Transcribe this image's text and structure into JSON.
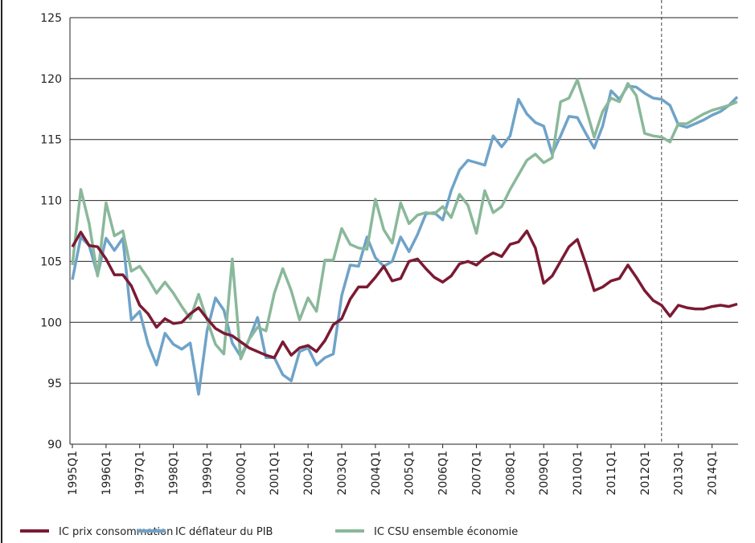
{
  "chart_data": {
    "type": "line",
    "categories": [
      "1995Q1",
      null,
      null,
      null,
      "1996Q1",
      null,
      null,
      null,
      "1997Q1",
      null,
      null,
      null,
      "1998Q1",
      null,
      null,
      null,
      "1999Q1",
      null,
      null,
      null,
      "2000Q1",
      null,
      null,
      null,
      "2001Q1",
      null,
      null,
      null,
      "2002Q1",
      null,
      null,
      null,
      "2003Q1",
      null,
      null,
      null,
      "2004Q1",
      null,
      null,
      null,
      "2005Q1",
      null,
      null,
      null,
      "2006Q1",
      null,
      null,
      null,
      "2007Q1",
      null,
      null,
      null,
      "2008Q1",
      null,
      null,
      null,
      "2009Q1",
      null,
      null,
      null,
      "2010Q1",
      null,
      null,
      null,
      "2011Q1",
      null,
      null,
      null,
      "2012Q1",
      null,
      null,
      null,
      "2013Q1",
      null,
      null,
      null,
      "2014Q1",
      null,
      null,
      null
    ],
    "series": [
      {
        "name": "IC prix consommation",
        "color": "#7b1a33",
        "values": [
          106.2,
          107.4,
          106.3,
          106.2,
          105.2,
          103.9,
          103.9,
          103.0,
          101.4,
          100.7,
          99.6,
          100.3,
          99.9,
          100.0,
          100.7,
          101.2,
          100.3,
          99.5,
          99.1,
          98.9,
          98.4,
          97.9,
          97.6,
          97.3,
          97.1,
          98.4,
          97.3,
          97.9,
          98.1,
          97.6,
          98.5,
          99.8,
          100.3,
          101.9,
          102.9,
          102.9,
          103.7,
          104.6,
          103.4,
          103.6,
          105.0,
          105.2,
          104.4,
          103.7,
          103.3,
          103.8,
          104.8,
          105.0,
          104.7,
          105.3,
          105.7,
          105.4,
          106.4,
          106.6,
          107.5,
          106.1,
          103.2,
          103.8,
          105.0,
          106.2,
          106.8,
          104.8,
          102.6,
          102.9,
          103.4,
          103.6,
          104.7,
          103.7,
          102.6,
          101.8,
          101.4,
          100.5,
          101.4,
          101.2,
          101.1,
          101.1,
          101.3,
          101.4,
          101.3,
          101.5
        ]
      },
      {
        "name": "IC déflateur du PIB",
        "color": "#6fa3c8",
        "values": [
          103.5,
          107.0,
          106.3,
          103.9,
          106.9,
          105.9,
          106.9,
          100.2,
          100.9,
          98.2,
          96.5,
          99.1,
          98.2,
          97.8,
          98.3,
          94.1,
          99.3,
          102.0,
          101.0,
          98.3,
          97.2,
          98.6,
          100.4,
          97.1,
          97.1,
          95.7,
          95.2,
          97.6,
          97.9,
          96.5,
          97.1,
          97.4,
          102.2,
          104.7,
          104.6,
          107.0,
          105.3,
          104.6,
          105.0,
          107.0,
          105.8,
          107.2,
          108.9,
          109.0,
          108.4,
          110.8,
          112.5,
          113.3,
          113.1,
          112.9,
          115.3,
          114.4,
          115.3,
          118.3,
          117.1,
          116.4,
          116.1,
          113.8,
          115.3,
          116.9,
          116.8,
          115.5,
          114.3,
          116.1,
          119.0,
          118.3,
          119.4,
          119.3,
          118.8,
          118.4,
          118.3,
          117.8,
          116.2,
          116.0,
          116.3,
          116.6,
          117.0,
          117.3,
          117.8,
          118.5
        ]
      },
      {
        "name": "IC CSU ensemble économie",
        "color": "#8ab89a",
        "values": [
          104.7,
          110.9,
          108.1,
          103.8,
          109.8,
          107.1,
          107.5,
          104.2,
          104.6,
          103.6,
          102.4,
          103.3,
          102.4,
          101.3,
          100.3,
          102.3,
          100.2,
          98.2,
          97.4,
          105.2,
          97.0,
          98.6,
          99.6,
          99.3,
          102.4,
          104.4,
          102.6,
          100.2,
          102.0,
          100.9,
          105.1,
          105.1,
          107.7,
          106.4,
          106.1,
          106.0,
          110.1,
          107.6,
          106.5,
          109.8,
          108.1,
          108.8,
          109.0,
          108.9,
          109.5,
          108.6,
          110.5,
          109.6,
          107.3,
          110.8,
          109.0,
          109.5,
          110.9,
          112.1,
          113.3,
          113.8,
          113.1,
          113.5,
          118.1,
          118.4,
          119.9,
          117.6,
          115.2,
          117.3,
          118.4,
          118.1,
          119.6,
          118.6,
          115.5,
          115.3,
          115.2,
          114.8,
          116.3,
          116.3,
          116.7,
          117.1,
          117.4,
          117.6,
          117.8,
          118.1
        ]
      }
    ],
    "ylim": [
      90,
      125
    ],
    "yticks": [
      90,
      95,
      100,
      105,
      110,
      115,
      120,
      125
    ],
    "grid": true,
    "vline_index": 70,
    "legend": "bottom"
  }
}
